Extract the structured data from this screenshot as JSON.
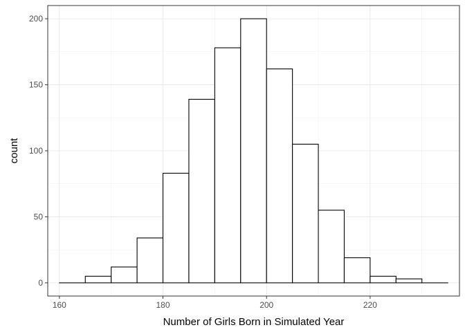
{
  "chart_data": {
    "type": "bar",
    "title": "",
    "xlabel": "Number of Girls Born in Simulated Year",
    "ylabel": "count",
    "xlim": [
      157.75,
      237.25
    ],
    "ylim": [
      -10,
      210
    ],
    "grid": true,
    "bin_width": 5,
    "bins": [
      {
        "start": 160,
        "end": 165,
        "count": 0
      },
      {
        "start": 165,
        "end": 170,
        "count": 5
      },
      {
        "start": 170,
        "end": 175,
        "count": 12
      },
      {
        "start": 175,
        "end": 180,
        "count": 34
      },
      {
        "start": 180,
        "end": 185,
        "count": 83
      },
      {
        "start": 185,
        "end": 190,
        "count": 139
      },
      {
        "start": 190,
        "end": 195,
        "count": 178
      },
      {
        "start": 195,
        "end": 200,
        "count": 200
      },
      {
        "start": 200,
        "end": 205,
        "count": 162
      },
      {
        "start": 205,
        "end": 210,
        "count": 105
      },
      {
        "start": 210,
        "end": 215,
        "count": 55
      },
      {
        "start": 215,
        "end": 220,
        "count": 19
      },
      {
        "start": 220,
        "end": 225,
        "count": 5
      },
      {
        "start": 225,
        "end": 230,
        "count": 3
      },
      {
        "start": 230,
        "end": 235,
        "count": 0
      }
    ],
    "x_ticks": [
      160,
      180,
      200,
      220
    ],
    "y_ticks": [
      0,
      50,
      100,
      150,
      200
    ]
  }
}
